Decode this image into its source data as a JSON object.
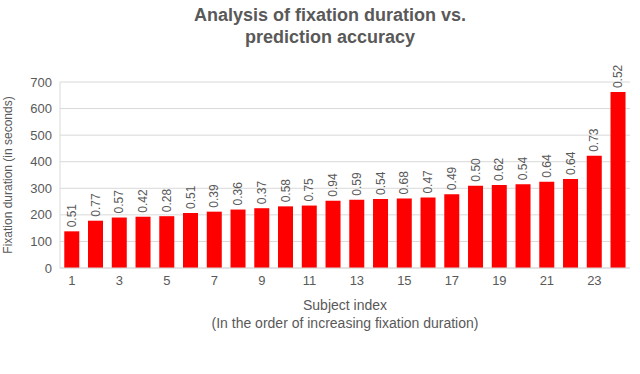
{
  "chart_data": {
    "type": "bar",
    "title": "Analysis of fixation duration vs. prediction accuracy",
    "xlabel": [
      "Subject index",
      "(In the order of increasing fixation duration)"
    ],
    "ylabel": "Fixation duration (in seconds)",
    "categories": [
      1,
      null,
      3,
      null,
      5,
      null,
      7,
      null,
      9,
      null,
      11,
      null,
      13,
      null,
      15,
      null,
      17,
      null,
      19,
      null,
      21,
      null,
      23,
      null
    ],
    "values": [
      138,
      178,
      190,
      193,
      195,
      207,
      212,
      220,
      225,
      232,
      235,
      253,
      257,
      260,
      262,
      265,
      278,
      310,
      312,
      315,
      325,
      335,
      422,
      662
    ],
    "accuracy_labels": [
      "0.51",
      "0.77",
      "0.57",
      "0.42",
      "0.28",
      "0.51",
      "0.39",
      "0.36",
      "0.37",
      "0.58",
      "0.75",
      "0.94",
      "0.59",
      "0.54",
      "0.68",
      "0.47",
      "0.49",
      "0.50",
      "0.62",
      "0.54",
      "0.64",
      "0.64",
      "0.73",
      "0.52"
    ],
    "color": "#ff0000",
    "ylim": [
      0,
      700
    ],
    "yticks": [
      0,
      100,
      200,
      300,
      400,
      500,
      600,
      700
    ],
    "grid": true
  }
}
